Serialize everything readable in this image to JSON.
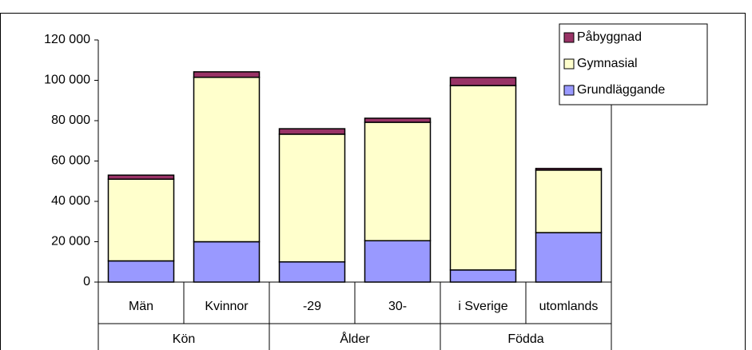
{
  "chart_data": {
    "type": "stacked_bar",
    "categories": [
      "Män",
      "Kvinnor",
      "-29",
      "30-",
      "i Sverige",
      "utomlands"
    ],
    "groups": [
      {
        "label": "Kön",
        "count": 2
      },
      {
        "label": "Ålder",
        "count": 2
      },
      {
        "label": "Födda",
        "count": 2
      }
    ],
    "series": [
      {
        "name": "Grundläggande",
        "color": "#9999ff",
        "values": [
          10500,
          20000,
          10000,
          20500,
          6000,
          24500
        ]
      },
      {
        "name": "Gymnasial",
        "color": "#ffffcc",
        "values": [
          40500,
          81500,
          63300,
          58700,
          91400,
          31000
        ]
      },
      {
        "name": "Påbyggnad",
        "color": "#993366",
        "values": [
          2000,
          2700,
          2700,
          2000,
          4000,
          800
        ]
      }
    ],
    "ylim": [
      0,
      120000
    ],
    "yticks": [
      0,
      {
        "value": 20000,
        "label": "20 000"
      },
      {
        "value": 40000,
        "label": "40 000"
      },
      {
        "value": 60000,
        "label": "60 000"
      },
      {
        "value": 80000,
        "label": "80 000"
      },
      {
        "value": 100000,
        "label": "100 000"
      },
      {
        "value": 120000,
        "label": "120 000"
      }
    ],
    "grid": false,
    "legend": "top-right"
  }
}
